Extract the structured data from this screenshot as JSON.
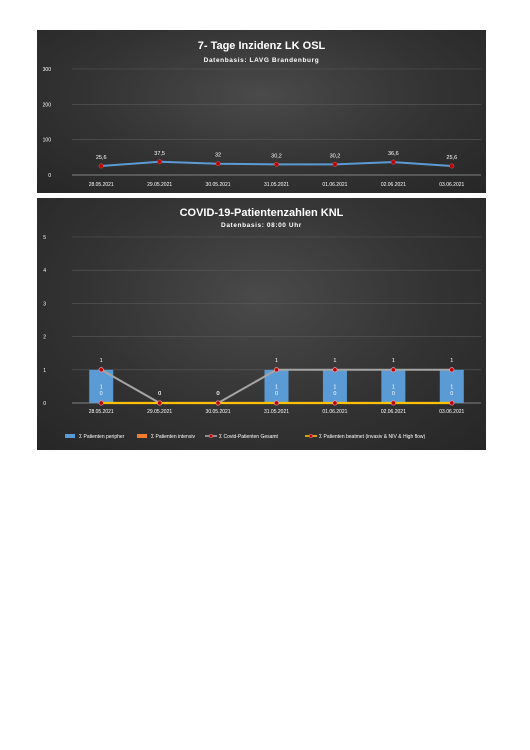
{
  "chart_data": [
    {
      "type": "line",
      "title": "7- Tage Inzidenz LK OSL",
      "subtitle": "Datenbasis: LAVG Brandenburg",
      "categories": [
        "28.05.2021",
        "29.05.2021",
        "30.05.2021",
        "31.05.2021",
        "01.06.2021",
        "02.06.2021",
        "03.06.2021"
      ],
      "values": [
        25.6,
        37.5,
        32,
        30.2,
        30.2,
        36.6,
        25.6
      ],
      "value_labels": [
        "25,6",
        "37,5",
        "32",
        "30,2",
        "30,2",
        "36,6",
        "25,6"
      ],
      "ylim": [
        0,
        300
      ],
      "yticks": [
        "0",
        "100",
        "200",
        "300"
      ],
      "grid": true,
      "colors": {
        "line": "#5b9bd5",
        "marker": "#c00000"
      }
    },
    {
      "type": "bar",
      "title": "COVID-19-Patientenzahlen KNL",
      "subtitle": "Datenbasis: 08:00 Uhr",
      "categories": [
        "28.05.2021",
        "29.05.2021",
        "30.05.2021",
        "31.05.2021",
        "01.06.2021",
        "02.06.2021",
        "03.06.2021"
      ],
      "ylim": [
        0,
        5
      ],
      "yticks": [
        "0",
        "1",
        "2",
        "3",
        "4",
        "5"
      ],
      "grid": true,
      "legend_position": "bottom",
      "series": [
        {
          "name": "Σ Patienten peripher",
          "kind": "bar",
          "color": "#5b9bd5",
          "values": [
            1,
            0,
            0,
            1,
            1,
            1,
            1
          ],
          "labels": [
            "1",
            "0",
            "0",
            "1",
            "1",
            "1",
            "1"
          ]
        },
        {
          "name": "Σ Patienten intensiv",
          "kind": "bar",
          "color": "#ed7d31",
          "values": [
            0,
            0,
            0,
            0,
            0,
            0,
            0
          ],
          "labels": [
            "0",
            "0",
            "0",
            "0",
            "0",
            "0",
            "0"
          ]
        },
        {
          "name": "Σ Covid-Patienten Gesamt",
          "kind": "line",
          "color": "#a5a5a5",
          "marker": "#c00000",
          "values": [
            1,
            0,
            0,
            1,
            1,
            1,
            1
          ],
          "labels": [
            "1",
            "0",
            "0",
            "1",
            "1",
            "1",
            "1"
          ]
        },
        {
          "name": "Σ Patienten beatmet (invasiv & NIV & High flow)",
          "kind": "line",
          "color": "#ffc000",
          "marker": "#c00000",
          "values": [
            0,
            0,
            0,
            0,
            0,
            0,
            0
          ]
        }
      ]
    }
  ]
}
